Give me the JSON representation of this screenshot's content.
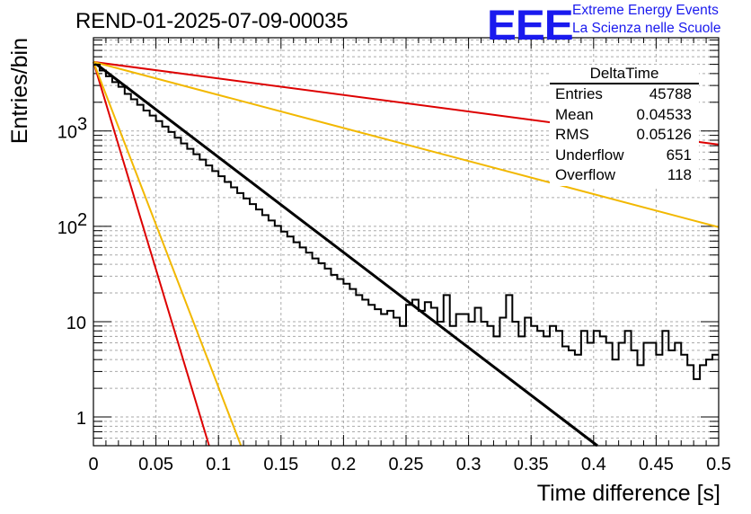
{
  "page_title": "REND-01-2025-07-09-00035",
  "logo": {
    "mark": "EEE",
    "line1": "Extreme Energy Events",
    "line2": "La Scienza nelle Scuole",
    "color": "#1a1aee"
  },
  "stats_box": {
    "title": "DeltaTime",
    "rows": [
      {
        "key": "Entries",
        "value": "45788"
      },
      {
        "key": "Mean",
        "value": "0.04533"
      },
      {
        "key": "RMS",
        "value": "0.05126"
      },
      {
        "key": "Underflow",
        "value": "651"
      },
      {
        "key": "Overflow",
        "value": "118"
      }
    ]
  },
  "chart_data": {
    "type": "line",
    "title": "REND-01-2025-07-09-00035",
    "xlabel": "Time difference [s]",
    "ylabel": "Entries/bin",
    "xlim": [
      0,
      0.5
    ],
    "ylim": [
      0.5,
      9500
    ],
    "yscale": "log",
    "grid": true,
    "x_ticks": [
      "0",
      "0.05",
      "0.1",
      "0.15",
      "0.2",
      "0.25",
      "0.3",
      "0.35",
      "0.4",
      "0.45",
      "0.5"
    ],
    "y_ticks": [
      "1",
      "10",
      "10^2",
      "10^3"
    ],
    "legend_placement": "top-right",
    "histogram": {
      "name": "DeltaTime",
      "color": "#000000",
      "bin_width": 0.005,
      "x_start": 0,
      "values": [
        4950,
        4300,
        3750,
        3250,
        2900,
        2450,
        2150,
        1880,
        1640,
        1450,
        1270,
        1110,
        975,
        850,
        740,
        650,
        570,
        500,
        435,
        380,
        335,
        292,
        256,
        223,
        196,
        171,
        150,
        131,
        115,
        101,
        88,
        78,
        68,
        60,
        53,
        46,
        41,
        36,
        31,
        28,
        25,
        22,
        19,
        17,
        15,
        13.5,
        12,
        13,
        11,
        9,
        15,
        17,
        13,
        16,
        14,
        10,
        19,
        9,
        12,
        12,
        10,
        14,
        10,
        9,
        7,
        11,
        19,
        10,
        7,
        11,
        9,
        8,
        7,
        9,
        8,
        5.5,
        5,
        4.5,
        8,
        6,
        8,
        7,
        6,
        4,
        6,
        8,
        5,
        3.5,
        6,
        6,
        4.5,
        8,
        5,
        6,
        4.5,
        3.5,
        2.5,
        3.5,
        4,
        4.5
      ]
    },
    "series": [
      {
        "type": "fit",
        "color": "#000000",
        "y0": 5300,
        "y1": 0.5,
        "x1": 0.403
      },
      {
        "color": "#dd0000",
        "y0": 5300,
        "y1": 720,
        "x1": 0.5
      },
      {
        "color": "#f2b800",
        "y0": 5300,
        "y1": 98,
        "x1": 0.5
      },
      {
        "color": "#dd0000",
        "y0": 5300,
        "y1": 0.5,
        "x1": 0.0925
      },
      {
        "color": "#f2b800",
        "y0": 5300,
        "y1": 0.5,
        "x1": 0.118
      }
    ]
  }
}
